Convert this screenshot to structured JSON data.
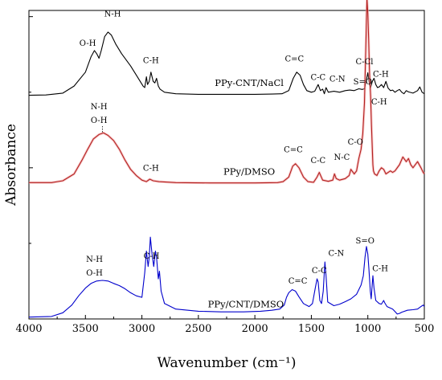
{
  "chart_data": {
    "type": "line",
    "xlabel": "Wavenumber (cm⁻¹)",
    "ylabel": "Absorbance",
    "xlim": [
      4000,
      500
    ],
    "ylim": [
      0,
      100
    ],
    "x_reversed": true,
    "x_ticks": [
      "4000",
      "3500",
      "3000",
      "2500",
      "2000",
      "1500",
      "1000",
      "500"
    ],
    "x_tick_values": [
      4000,
      3500,
      3000,
      2500,
      2000,
      1500,
      1000,
      500
    ],
    "y_tick_values": [
      0,
      49,
      98
    ],
    "grid": false,
    "legend": "none",
    "series": [
      {
        "name": "PPy-CNT/NaCl",
        "color": "#000000",
        "points": [
          [
            4000,
            72.5
          ],
          [
            3850,
            72.6
          ],
          [
            3700,
            73.2
          ],
          [
            3600,
            75.5
          ],
          [
            3500,
            80
          ],
          [
            3450,
            85
          ],
          [
            3420,
            87
          ],
          [
            3400,
            86
          ],
          [
            3380,
            84.5
          ],
          [
            3360,
            87
          ],
          [
            3330,
            91.5
          ],
          [
            3300,
            93
          ],
          [
            3270,
            92
          ],
          [
            3230,
            89
          ],
          [
            3180,
            86
          ],
          [
            3100,
            82
          ],
          [
            3040,
            78.5
          ],
          [
            2990,
            75.5
          ],
          [
            2975,
            75
          ],
          [
            2960,
            78.5
          ],
          [
            2950,
            76
          ],
          [
            2935,
            77
          ],
          [
            2920,
            80
          ],
          [
            2900,
            77
          ],
          [
            2885,
            76.5
          ],
          [
            2870,
            78
          ],
          [
            2855,
            75.5
          ],
          [
            2840,
            74.5
          ],
          [
            2800,
            73.5
          ],
          [
            2700,
            73
          ],
          [
            2500,
            72.8
          ],
          [
            2000,
            72.8
          ],
          [
            1850,
            72.9
          ],
          [
            1760,
            73
          ],
          [
            1700,
            74
          ],
          [
            1660,
            78
          ],
          [
            1630,
            80
          ],
          [
            1600,
            79
          ],
          [
            1570,
            76
          ],
          [
            1540,
            74
          ],
          [
            1500,
            73.5
          ],
          [
            1470,
            73.8
          ],
          [
            1440,
            76
          ],
          [
            1420,
            74
          ],
          [
            1400,
            74.5
          ],
          [
            1385,
            73
          ],
          [
            1370,
            75
          ],
          [
            1350,
            73.5
          ],
          [
            1300,
            73.8
          ],
          [
            1250,
            73.5
          ],
          [
            1200,
            74
          ],
          [
            1160,
            74.2
          ],
          [
            1120,
            74
          ],
          [
            1080,
            74.6
          ],
          [
            1050,
            74.4
          ],
          [
            1030,
            74.6
          ],
          [
            1015,
            77
          ],
          [
            1000,
            79.8
          ],
          [
            985,
            76
          ],
          [
            975,
            75
          ],
          [
            960,
            77
          ],
          [
            945,
            78
          ],
          [
            930,
            76
          ],
          [
            915,
            75
          ],
          [
            900,
            75.2
          ],
          [
            880,
            76
          ],
          [
            860,
            75
          ],
          [
            840,
            77
          ],
          [
            820,
            74.8
          ],
          [
            800,
            74
          ],
          [
            780,
            74.2
          ],
          [
            760,
            73.5
          ],
          [
            740,
            74
          ],
          [
            720,
            74.4
          ],
          [
            700,
            73.5
          ],
          [
            680,
            73
          ],
          [
            660,
            74
          ],
          [
            640,
            73.6
          ],
          [
            600,
            73.2
          ],
          [
            560,
            74
          ],
          [
            540,
            75.2
          ],
          [
            520,
            73.5
          ],
          [
            500,
            73
          ]
        ]
      },
      {
        "name": "PPy/DMSO",
        "color": "#b22222",
        "points": [
          [
            4000,
            44.2
          ],
          [
            3800,
            44.2
          ],
          [
            3700,
            44.8
          ],
          [
            3600,
            47
          ],
          [
            3530,
            51.5
          ],
          [
            3480,
            55
          ],
          [
            3430,
            58.3
          ],
          [
            3380,
            59.8
          ],
          [
            3340,
            60.3
          ],
          [
            3300,
            59.5
          ],
          [
            3250,
            57.8
          ],
          [
            3200,
            55
          ],
          [
            3150,
            51.5
          ],
          [
            3100,
            48.5
          ],
          [
            3050,
            46.5
          ],
          [
            3000,
            45
          ],
          [
            2960,
            44.5
          ],
          [
            2930,
            45.3
          ],
          [
            2900,
            44.8
          ],
          [
            2850,
            44.5
          ],
          [
            2700,
            44.2
          ],
          [
            2400,
            44.1
          ],
          [
            2000,
            44.1
          ],
          [
            1800,
            44.2
          ],
          [
            1750,
            44.5
          ],
          [
            1700,
            46
          ],
          [
            1665,
            49.5
          ],
          [
            1640,
            50.3
          ],
          [
            1610,
            49
          ],
          [
            1570,
            46
          ],
          [
            1530,
            44.5
          ],
          [
            1480,
            44.3
          ],
          [
            1450,
            46
          ],
          [
            1430,
            47.5
          ],
          [
            1400,
            45
          ],
          [
            1350,
            44.6
          ],
          [
            1310,
            45
          ],
          [
            1295,
            47
          ],
          [
            1280,
            45.5
          ],
          [
            1250,
            45
          ],
          [
            1200,
            45.5
          ],
          [
            1165,
            46.5
          ],
          [
            1150,
            48.5
          ],
          [
            1120,
            47
          ],
          [
            1100,
            48
          ],
          [
            1080,
            52
          ],
          [
            1060,
            55
          ],
          [
            1045,
            60
          ],
          [
            1030,
            70
          ],
          [
            1018,
            88
          ],
          [
            1008,
            104
          ],
          [
            1000,
            99
          ],
          [
            993,
            91
          ],
          [
            985,
            80
          ],
          [
            975,
            72
          ],
          [
            968,
            63
          ],
          [
            960,
            55
          ],
          [
            955,
            50
          ],
          [
            950,
            48
          ],
          [
            940,
            47
          ],
          [
            920,
            46.5
          ],
          [
            900,
            48
          ],
          [
            880,
            49
          ],
          [
            860,
            48.5
          ],
          [
            840,
            47
          ],
          [
            800,
            48
          ],
          [
            780,
            47.5
          ],
          [
            760,
            48
          ],
          [
            720,
            50
          ],
          [
            690,
            52.5
          ],
          [
            660,
            51
          ],
          [
            640,
            52
          ],
          [
            620,
            50
          ],
          [
            600,
            49
          ],
          [
            560,
            51
          ],
          [
            530,
            49
          ],
          [
            510,
            47.5
          ],
          [
            500,
            47
          ]
        ]
      },
      {
        "name": "PPy/CNT/DMSO",
        "color": "#0000cc",
        "points": [
          [
            4000,
            0.6
          ],
          [
            3800,
            0.8
          ],
          [
            3700,
            2
          ],
          [
            3620,
            4.5
          ],
          [
            3560,
            7.5
          ],
          [
            3500,
            10
          ],
          [
            3450,
            11.5
          ],
          [
            3400,
            12.3
          ],
          [
            3350,
            12.5
          ],
          [
            3300,
            12.3
          ],
          [
            3250,
            11.5
          ],
          [
            3200,
            10.8
          ],
          [
            3150,
            9.8
          ],
          [
            3100,
            8.5
          ],
          [
            3050,
            7.5
          ],
          [
            3000,
            7
          ],
          [
            2975,
            15
          ],
          [
            2960,
            22
          ],
          [
            2945,
            17
          ],
          [
            2935,
            20
          ],
          [
            2925,
            26.5
          ],
          [
            2910,
            21
          ],
          [
            2895,
            17
          ],
          [
            2880,
            22
          ],
          [
            2870,
            20
          ],
          [
            2855,
            13
          ],
          [
            2845,
            15.5
          ],
          [
            2830,
            9
          ],
          [
            2800,
            5
          ],
          [
            2700,
            3.2
          ],
          [
            2500,
            2.5
          ],
          [
            2300,
            2.3
          ],
          [
            2100,
            2.3
          ],
          [
            1950,
            2.5
          ],
          [
            1850,
            2.8
          ],
          [
            1780,
            3.2
          ],
          [
            1740,
            4.5
          ],
          [
            1720,
            7
          ],
          [
            1700,
            8.5
          ],
          [
            1670,
            9.5
          ],
          [
            1640,
            9
          ],
          [
            1610,
            7.2
          ],
          [
            1570,
            5
          ],
          [
            1520,
            4
          ],
          [
            1490,
            5
          ],
          [
            1465,
            10
          ],
          [
            1450,
            13
          ],
          [
            1440,
            12
          ],
          [
            1425,
            6
          ],
          [
            1410,
            5
          ],
          [
            1395,
            9
          ],
          [
            1380,
            18.5
          ],
          [
            1370,
            14
          ],
          [
            1355,
            5.5
          ],
          [
            1300,
            4.3
          ],
          [
            1250,
            4.8
          ],
          [
            1200,
            5.6
          ],
          [
            1150,
            6.5
          ],
          [
            1100,
            8
          ],
          [
            1060,
            11
          ],
          [
            1040,
            14
          ],
          [
            1025,
            20
          ],
          [
            1012,
            23.5
          ],
          [
            1000,
            21
          ],
          [
            990,
            16
          ],
          [
            978,
            9
          ],
          [
            970,
            6.5
          ],
          [
            962,
            11
          ],
          [
            955,
            14
          ],
          [
            945,
            10
          ],
          [
            930,
            6
          ],
          [
            900,
            5
          ],
          [
            880,
            4.8
          ],
          [
            860,
            6
          ],
          [
            850,
            5.2
          ],
          [
            830,
            4
          ],
          [
            780,
            3.2
          ],
          [
            760,
            2.4
          ],
          [
            740,
            1.6
          ],
          [
            720,
            1.8
          ],
          [
            700,
            2.2
          ],
          [
            650,
            2.8
          ],
          [
            600,
            3
          ],
          [
            560,
            3.2
          ],
          [
            530,
            4
          ],
          [
            510,
            4.5
          ],
          [
            500,
            4
          ]
        ]
      }
    ],
    "series_labels": [
      "PPy-CNT/NaCl",
      "PPy/DMSO",
      "PPy/CNT/DMSO"
    ],
    "annotations": [
      {
        "text": "O-H",
        "x": 3480,
        "y": 88.5
      },
      {
        "text": "N-H",
        "x": 3260,
        "y": 98
      },
      {
        "text": "C-H",
        "x": 2920,
        "y": 83
      },
      {
        "text": "C=C",
        "x": 1650,
        "y": 83.5
      },
      {
        "text": "C-C",
        "x": 1440,
        "y": 77.5
      },
      {
        "text": "C-N",
        "x": 1270,
        "y": 77
      },
      {
        "text": "C-Cl",
        "x": 1030,
        "y": 82.5
      },
      {
        "text": "C-H",
        "x": 885,
        "y": 78.5
      },
      {
        "text": "N-H",
        "x": 3380,
        "y": 68
      },
      {
        "text": "O-H",
        "x": 3380,
        "y": 63.5
      },
      {
        "text": "C-H",
        "x": 2920,
        "y": 48
      },
      {
        "text": "C=C",
        "x": 1660,
        "y": 54
      },
      {
        "text": "C-C",
        "x": 1440,
        "y": 50.5
      },
      {
        "text": "N-C",
        "x": 1230,
        "y": 51.5
      },
      {
        "text": "C-O",
        "x": 1110,
        "y": 56.5
      },
      {
        "text": "S=O",
        "x": 1045,
        "y": 76
      },
      {
        "text": "C-H",
        "x": 900,
        "y": 69.5
      },
      {
        "text": "N-H",
        "x": 3420,
        "y": 18.5
      },
      {
        "text": "O-H",
        "x": 3420,
        "y": 14
      },
      {
        "text": "C-H",
        "x": 2915,
        "y": 19.5
      },
      {
        "text": "C=C",
        "x": 1620,
        "y": 11.5
      },
      {
        "text": "C-C",
        "x": 1430,
        "y": 14.8
      },
      {
        "text": "C-N",
        "x": 1280,
        "y": 20.5
      },
      {
        "text": "S=O",
        "x": 1025,
        "y": 24.5
      },
      {
        "text": "C-H",
        "x": 890,
        "y": 15.5
      }
    ]
  }
}
